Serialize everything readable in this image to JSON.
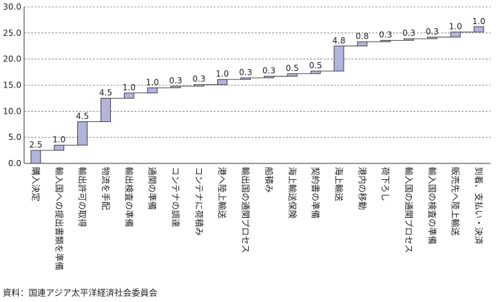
{
  "chart_data": {
    "type": "bar",
    "subtype": "waterfall",
    "categories": [
      "購入決定",
      "輸入国への提出書類を準備",
      "輸出許可の取得",
      "物流を手配",
      "輸出検査の準備",
      "通関の準備",
      "コンテナの調達",
      "コンテナに荷積み",
      "港へ陸上輸送",
      "輸出国の通関プロセス",
      "船積み",
      "海上輸送保険",
      "契約書の準備",
      "海上輸送",
      "港内の移動",
      "荷下ろし",
      "輸入国の通関プロセス",
      "輸入国の検査の準備",
      "販売先へ陸上輸送",
      "到着、支払い・決済"
    ],
    "values": [
      2.5,
      1.0,
      4.5,
      4.5,
      1.0,
      1.0,
      0.3,
      0.3,
      1.0,
      0.3,
      0.3,
      0.5,
      0.5,
      4.8,
      0.8,
      0.3,
      0.3,
      0.3,
      1.0,
      1.0
    ],
    "data_labels": [
      "2.5",
      "1.0",
      "4.5",
      "4.5",
      "1.0",
      "1.0",
      "0.3",
      "0.3",
      "1.0",
      "0.3",
      "0.3",
      "0.5",
      "0.5",
      "4.8",
      "0.8",
      "0.3",
      "0.3",
      "0.3",
      "1.0",
      "1.0"
    ],
    "yticks": [
      "0.0",
      "5.0",
      "10.0",
      "15.0",
      "20.0",
      "25.0",
      "30.0"
    ],
    "ylim": [
      0,
      30
    ],
    "ytick_step": 5,
    "grid": "horizontal-dashed",
    "bar_color": "#b3b3db",
    "bar_edge": "#333333",
    "xlabel": "",
    "ylabel": ""
  },
  "source": "資料：国連アジア太平洋経済社会委員会"
}
